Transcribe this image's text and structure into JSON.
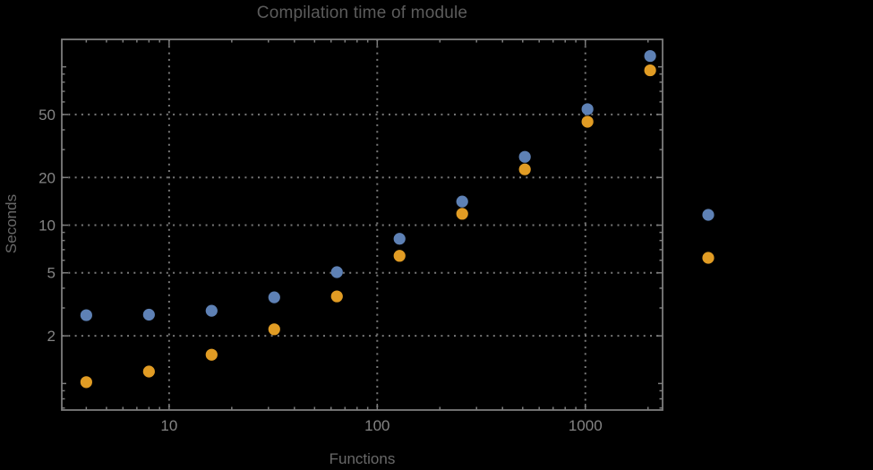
{
  "title": "Compilation time of module",
  "axis": {
    "x_label": "Functions",
    "y_label": "Seconds"
  },
  "colors": {
    "background": "#000000",
    "frame": "#7d7d7d",
    "grid": "#787878",
    "tick": "#7d7d7d",
    "tick_label": "#848484",
    "title_text": "#5c5c5c",
    "axis_label_text": "#696969",
    "series_blue": "#5e81b5",
    "series_orange": "#e19c24"
  },
  "chart_data": {
    "type": "scatter",
    "title": "Compilation time of module",
    "xlabel": "Functions",
    "ylabel": "Seconds",
    "xscale": "log",
    "yscale": "log",
    "xlim": [
      3.05,
      2350
    ],
    "ylim": [
      0.68,
      149
    ],
    "grid": "dotted",
    "x_major_ticks": [
      10,
      100,
      1000
    ],
    "x_tick_labels": [
      "10",
      "100",
      "1000"
    ],
    "y_major_ticks": [
      2,
      5,
      10,
      20,
      50
    ],
    "y_tick_labels": [
      "2",
      "5",
      "10",
      "20",
      "50"
    ],
    "x": [
      4,
      8,
      16,
      32,
      64,
      128,
      256,
      512,
      1024,
      2048
    ],
    "series": [
      {
        "name": "series-blue",
        "color": "#5e81b5",
        "values": [
          2.7,
          2.72,
          2.88,
          3.5,
          5.05,
          8.2,
          14.1,
          27,
          54,
          117
        ]
      },
      {
        "name": "series-orange",
        "color": "#e19c24",
        "values": [
          1.02,
          1.19,
          1.52,
          2.2,
          3.55,
          6.4,
          11.8,
          22.5,
          45,
          95
        ]
      }
    ],
    "legend": {
      "position": "right-of-plot",
      "labels_visible": false,
      "marker_colors": [
        "#5e81b5",
        "#e19c24"
      ]
    },
    "marker_radius": 6.6
  }
}
